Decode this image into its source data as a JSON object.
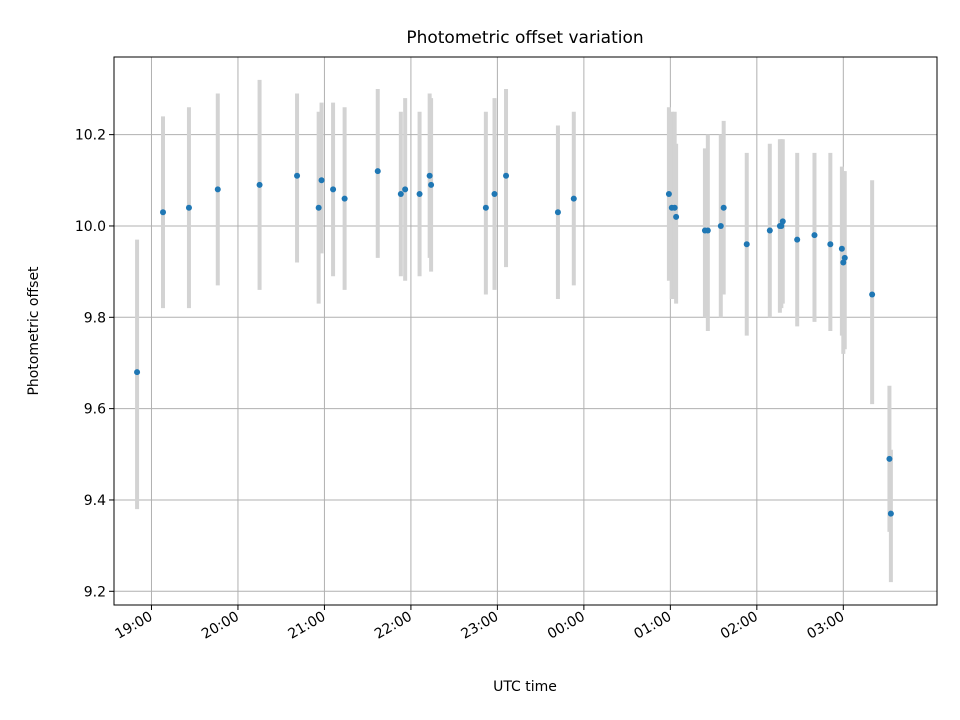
{
  "chart_data": {
    "type": "scatter",
    "title": "Photometric offset variation",
    "xlabel": "UTC time",
    "ylabel": "Photometric offset",
    "x_tick_labels": [
      "19:00",
      "20:00",
      "21:00",
      "22:00",
      "23:00",
      "00:00",
      "01:00",
      "02:00",
      "03:00"
    ],
    "y_ticks": [
      "9.2",
      "9.4",
      "9.6",
      "9.8",
      "10.0",
      "10.2"
    ],
    "ylim": [
      9.17,
      10.37
    ],
    "xlim": [
      "18:34",
      "04:05"
    ],
    "grid": true,
    "marker_color": "#1f77b4",
    "errorbar_color": "#d3d3d3",
    "series": [
      {
        "x": [
          "18:50",
          "19:08",
          "19:26",
          "19:46",
          "20:15",
          "20:41",
          "20:56",
          "20:58",
          "21:06",
          "21:14",
          "21:37",
          "21:53",
          "21:56",
          "22:06",
          "22:13",
          "22:14",
          "22:52",
          "22:58",
          "23:06",
          "23:42",
          "23:53",
          "00:59",
          "01:01",
          "01:03",
          "01:04",
          "01:24",
          "01:26",
          "01:35",
          "01:37",
          "01:53",
          "02:09",
          "02:16",
          "02:17",
          "02:18",
          "02:28",
          "02:40",
          "02:51",
          "02:59",
          "03:00",
          "03:01",
          "03:20",
          "03:32",
          "03:33"
        ],
        "y": [
          9.68,
          10.03,
          10.04,
          10.08,
          10.09,
          10.11,
          10.04,
          10.1,
          10.08,
          10.06,
          10.12,
          10.07,
          10.08,
          10.07,
          10.11,
          10.09,
          10.04,
          10.07,
          10.11,
          10.03,
          10.06,
          10.07,
          10.04,
          10.04,
          10.02,
          9.99,
          9.99,
          10.0,
          10.04,
          9.96,
          9.99,
          10.0,
          10.0,
          10.01,
          9.97,
          9.98,
          9.96,
          9.95,
          9.92,
          9.93,
          9.85,
          9.49,
          9.37
        ],
        "err_low": [
          9.38,
          9.82,
          9.82,
          9.87,
          9.86,
          9.92,
          9.83,
          9.94,
          9.89,
          9.86,
          9.93,
          9.89,
          9.88,
          9.89,
          9.93,
          9.9,
          9.85,
          9.86,
          9.91,
          9.84,
          9.87,
          9.88,
          9.84,
          9.84,
          9.83,
          9.8,
          9.77,
          9.8,
          9.85,
          9.76,
          9.8,
          9.81,
          9.82,
          9.83,
          9.78,
          9.79,
          9.77,
          9.76,
          9.72,
          9.73,
          9.61,
          9.33,
          9.22
        ],
        "err_high": [
          9.97,
          10.24,
          10.26,
          10.29,
          10.32,
          10.29,
          10.25,
          10.27,
          10.27,
          10.26,
          10.3,
          10.25,
          10.28,
          10.25,
          10.29,
          10.28,
          10.25,
          10.28,
          10.3,
          10.22,
          10.25,
          10.26,
          10.25,
          10.25,
          10.18,
          10.17,
          10.2,
          10.2,
          10.23,
          10.16,
          10.18,
          10.19,
          10.19,
          10.19,
          10.16,
          10.16,
          10.16,
          10.13,
          10.12,
          10.12,
          10.1,
          9.65,
          9.51
        ]
      }
    ]
  }
}
